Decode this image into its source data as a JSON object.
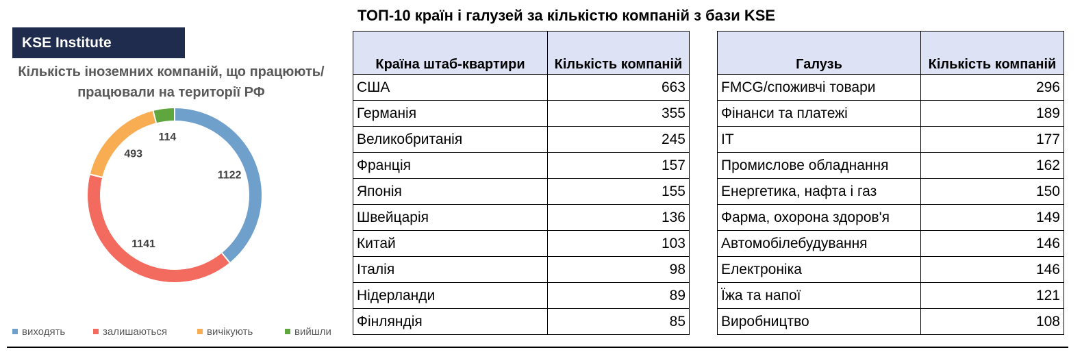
{
  "brand": "KSE Institute",
  "chart_data": {
    "type": "donut",
    "title": "Кількість іноземних компаній, що працюють/працювали на території РФ",
    "categories": [
      "виходять",
      "залишаються",
      "вичікують",
      "вийшли"
    ],
    "values": [
      1122,
      1141,
      493,
      114
    ],
    "colors": [
      "#6fa0cc",
      "#f26b5e",
      "#f8ad52",
      "#5fa63e"
    ],
    "legend": "bottom"
  },
  "title": "ТОП-10 країн і галузей за кількістю компаній з бази KSE",
  "tables": [
    {
      "headers": [
        "Країна штаб-квартири",
        "Кількість компаній"
      ],
      "rows": [
        [
          "США",
          663
        ],
        [
          "Германія",
          355
        ],
        [
          "Великобританія",
          245
        ],
        [
          "Франція",
          157
        ],
        [
          "Японія",
          155
        ],
        [
          "Швейцарія",
          136
        ],
        [
          "Китай",
          103
        ],
        [
          "Італія",
          98
        ],
        [
          "Нідерланди",
          89
        ],
        [
          "Фінляндія",
          85
        ]
      ]
    },
    {
      "headers": [
        "Галузь",
        "Кількість компаній"
      ],
      "rows": [
        [
          "FMCG/споживчі товари",
          296
        ],
        [
          "Фінанси та платежі",
          189
        ],
        [
          "IT",
          177
        ],
        [
          "Промислове обладнання",
          162
        ],
        [
          "Енергетика, нафта і газ",
          150
        ],
        [
          "Фарма, охорона здоров'я",
          149
        ],
        [
          "Автомобілебудування",
          146
        ],
        [
          "Електроніка",
          146
        ],
        [
          "Їжа та напої",
          121
        ],
        [
          "Виробництво",
          108
        ]
      ]
    }
  ]
}
